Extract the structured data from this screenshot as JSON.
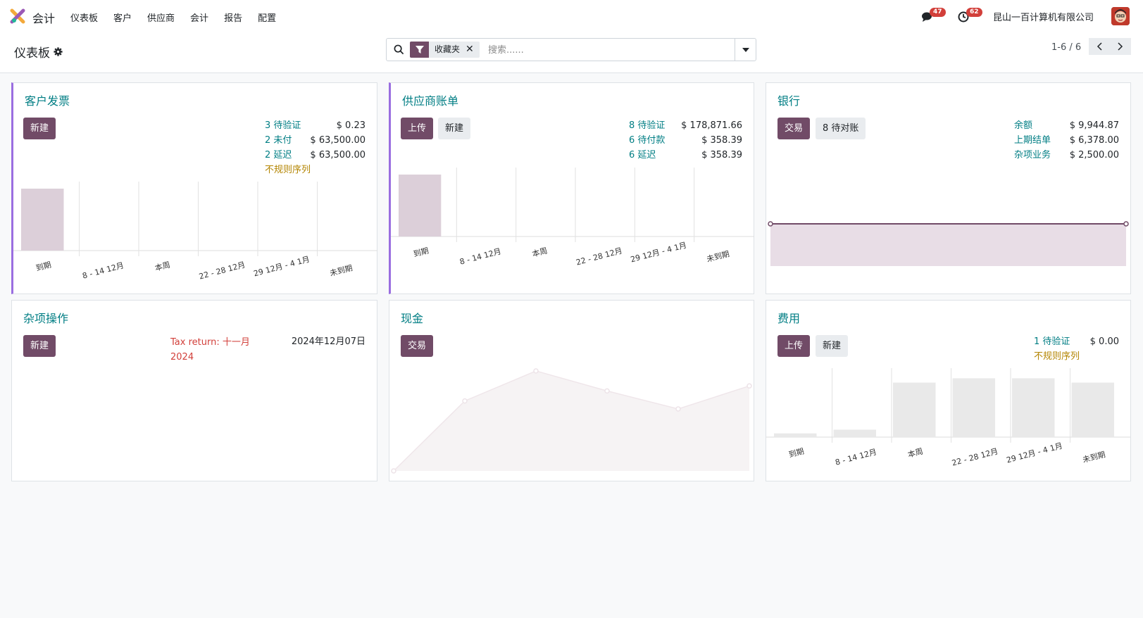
{
  "app": {
    "name": "会计",
    "menu": [
      "仪表板",
      "客户",
      "供应商",
      "会计",
      "报告",
      "配置"
    ],
    "company": "昆山一百计算机有限公司",
    "messages_badge": "47",
    "activities_badge": "62"
  },
  "control": {
    "breadcrumb": "仪表板",
    "facet_label": "收藏夹",
    "search_placeholder": "搜索......",
    "pager": "1-6 / 6"
  },
  "cards": {
    "customer_invoices": {
      "title": "客户发票",
      "btn_new": "新建",
      "stats": [
        {
          "label": "3 待验证",
          "value": "$ 0.23"
        },
        {
          "label": "2 未付",
          "value": "$ 63,500.00"
        },
        {
          "label": "2 延迟",
          "value": "$ 63,500.00"
        }
      ],
      "warning": "不规则序列",
      "chart_labels": [
        "到期",
        "8 - 14 12月",
        "本周",
        "22 - 28 12月",
        "29 12月 - 4 1月",
        "未到期"
      ]
    },
    "vendor_bills": {
      "title": "供应商账单",
      "btn_upload": "上传",
      "btn_new": "新建",
      "stats": [
        {
          "label": "8 待验证",
          "value": "$ 178,871.66"
        },
        {
          "label": "6 待付款",
          "value": "$ 358.39"
        },
        {
          "label": "6 延迟",
          "value": "$ 358.39"
        }
      ],
      "chart_labels": [
        "到期",
        "8 - 14 12月",
        "本周",
        "22 - 28 12月",
        "29 12月 - 4 1月",
        "未到期"
      ]
    },
    "bank": {
      "title": "银行",
      "btn_transactions": "交易",
      "btn_reconcile": "8 待对账",
      "stats": [
        {
          "label": "余额",
          "value": "$ 9,944.87"
        },
        {
          "label": "上期结单",
          "value": "$ 6,378.00"
        },
        {
          "label": "杂项业务",
          "value": "$ 2,500.00"
        }
      ]
    },
    "misc": {
      "title": "杂项操作",
      "btn_new": "新建",
      "tax_line1": "Tax return: 十一月",
      "tax_line2": "2024",
      "tax_date": "2024年12月07日"
    },
    "cash": {
      "title": "现金",
      "btn_transactions": "交易"
    },
    "expenses": {
      "title": "费用",
      "btn_upload": "上传",
      "btn_new": "新建",
      "stats": [
        {
          "label": "1 待验证",
          "value": "$ 0.00"
        }
      ],
      "warning": "不规则序列",
      "chart_labels": [
        "到期",
        "8 - 14 12月",
        "本周",
        "22 - 28 12月",
        "29 12月 - 4 1月",
        "未到期"
      ]
    }
  },
  "colors": {
    "primary": "#714b67",
    "link": "#017e84",
    "warning": "#b38400",
    "danger": "#d23f3a",
    "accent": "#9a6ee0"
  },
  "icons": [
    "app-logo-icon",
    "search-icon",
    "filter-icon",
    "close-icon",
    "caret-down-icon",
    "chat-icon",
    "clock-icon",
    "gear-icon",
    "chevron-left-icon",
    "chevron-right-icon"
  ],
  "chart_data": [
    {
      "type": "bar",
      "categories": [
        "到期",
        "8 - 14 12月",
        "本周",
        "22 - 28 12月",
        "29 12月 - 4 1月",
        "未到期"
      ],
      "values": [
        1,
        0,
        0,
        0,
        0,
        0
      ]
    },
    {
      "type": "bar",
      "categories": [
        "到期",
        "8 - 14 12月",
        "本周",
        "22 - 28 12月",
        "29 12月 - 4 1月",
        "未到期"
      ],
      "values": [
        1,
        0,
        0,
        0,
        0,
        0
      ]
    },
    {
      "type": "area",
      "values": [
        1,
        1,
        1,
        1,
        1,
        1
      ]
    },
    {
      "type": "area",
      "values": [
        0,
        0.7,
        1.0,
        0.8,
        0.62,
        0.85
      ]
    },
    {
      "type": "bar",
      "categories": [
        "到期",
        "8 - 14 12月",
        "本周",
        "22 - 28 12月",
        "29 12月 - 4 1月",
        "未到期"
      ],
      "values": [
        0.06,
        0.12,
        0.88,
        0.95,
        0.95,
        0.88
      ]
    }
  ]
}
